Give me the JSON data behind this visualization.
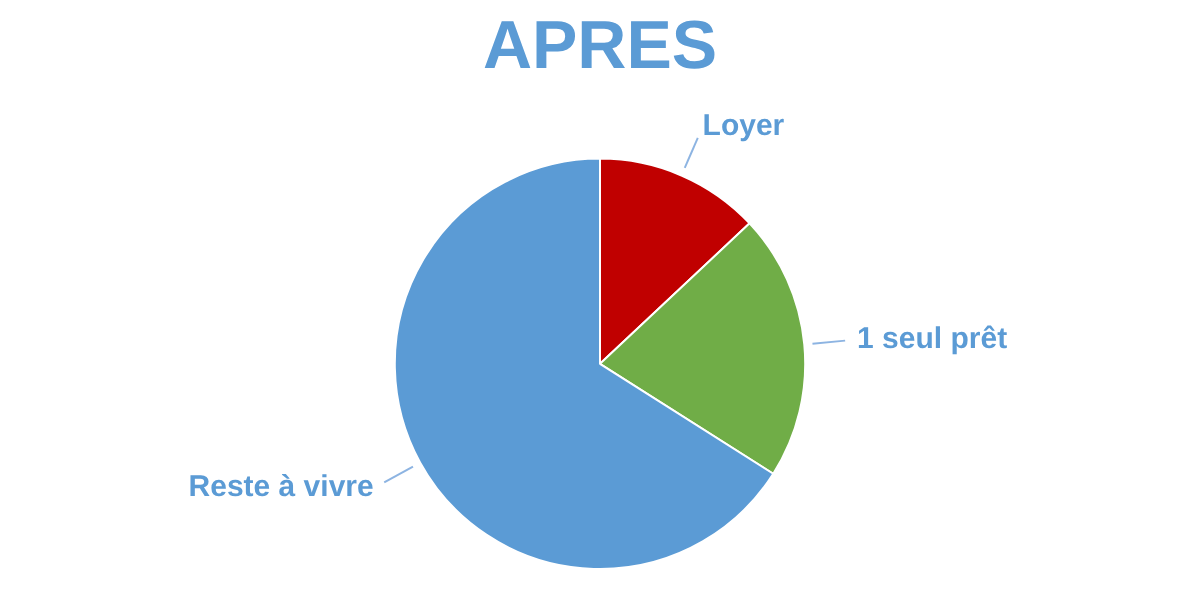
{
  "chart_data": {
    "type": "pie",
    "title": "APRES",
    "categories": [
      "Loyer",
      "1 seul prêt",
      "Reste à vivre"
    ],
    "values": [
      13,
      21,
      66
    ],
    "colors": [
      "#c00000",
      "#70ad47",
      "#5b9bd5"
    ],
    "legend": false
  }
}
